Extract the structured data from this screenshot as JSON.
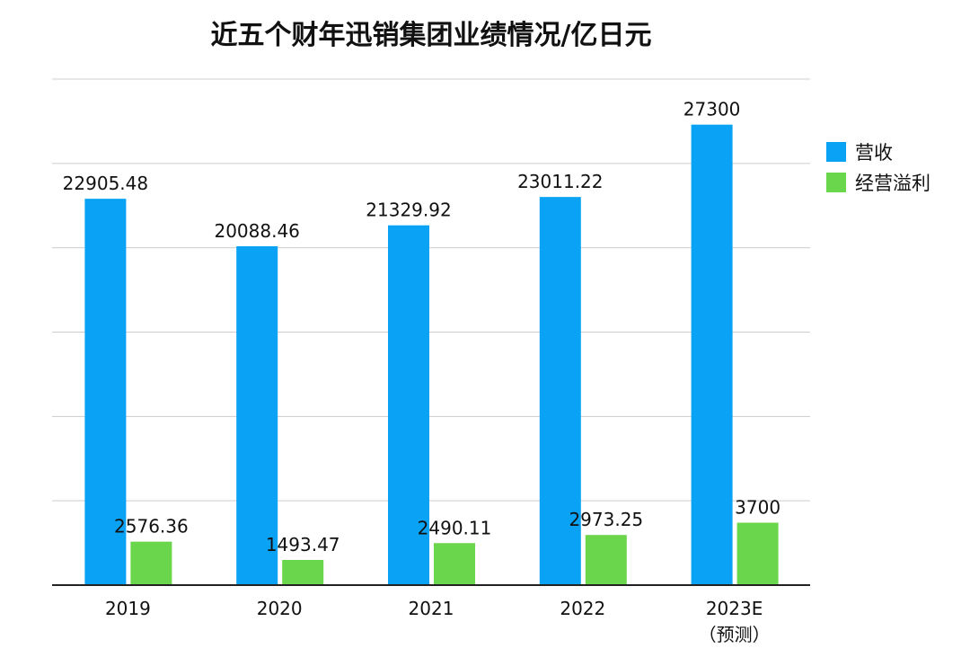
{
  "chart_data": {
    "type": "bar",
    "title": "近五个财年迅销集团业绩情况/亿日元",
    "categories": [
      "2019",
      "2020",
      "2021",
      "2022",
      "2023E"
    ],
    "category_sublabels": [
      "",
      "",
      "",
      "",
      "（预测）"
    ],
    "series": [
      {
        "name": "营收",
        "color": "#0aa2f5",
        "values": [
          22905.48,
          20088.46,
          21329.92,
          23011.22,
          27300
        ],
        "labels": [
          "22905.48",
          "20088.46",
          "21329.92",
          "23011.22",
          "27300"
        ]
      },
      {
        "name": "经营溢利",
        "color": "#6ad64c",
        "values": [
          2576.36,
          1493.47,
          2490.11,
          2973.25,
          3700
        ],
        "labels": [
          "2576.36",
          "1493.47",
          "2490.11",
          "2973.25",
          "3700"
        ]
      }
    ],
    "xlabel": "",
    "ylabel": "",
    "ylim": [
      0,
      30000
    ],
    "grid": true,
    "legend_position": "right"
  }
}
